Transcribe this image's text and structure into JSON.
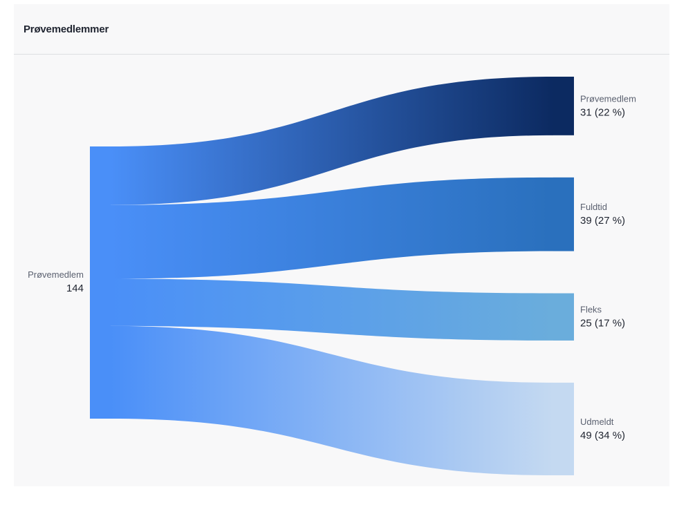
{
  "card": {
    "title": "Prøvemedlemmer"
  },
  "chart_data": {
    "type": "sankey",
    "title": "Prøvemedlemmer",
    "source": {
      "label": "Prøvemedlem",
      "value": 144,
      "value_label": "144",
      "color": "#4a8ff8"
    },
    "targets": [
      {
        "label": "Prøvemedlem",
        "value": 31,
        "value_label": "31 (22 %)",
        "color": "#0c2a61"
      },
      {
        "label": "Fuldtid",
        "value": 39,
        "value_label": "39 (27 %)",
        "color": "#2a70bd"
      },
      {
        "label": "Fleks",
        "value": 25,
        "value_label": "25 (17 %)",
        "color": "#6aaddc"
      },
      {
        "label": "Udmeldt",
        "value": 49,
        "value_label": "49 (34 %)",
        "color": "#c4d9f1"
      }
    ]
  }
}
